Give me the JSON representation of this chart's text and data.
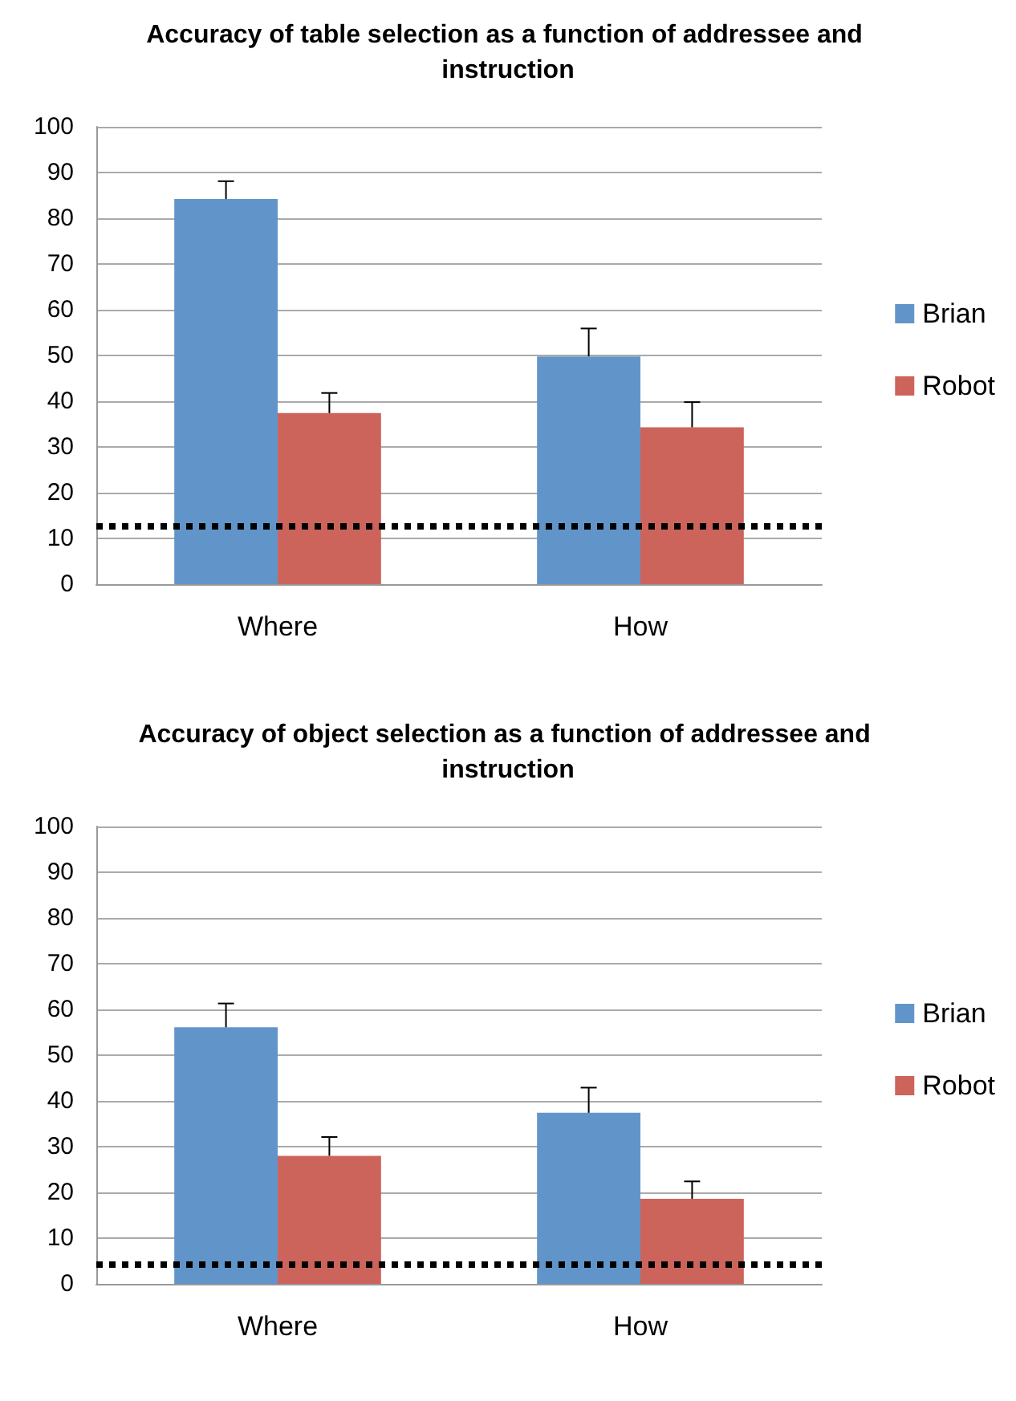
{
  "chart_data": [
    {
      "type": "bar",
      "title": "Accuracy of table selection as a function of addressee and instruction",
      "categories": [
        "Where",
        "How"
      ],
      "series": [
        {
          "name": "Brian",
          "color": "#6195c9",
          "values": [
            84.2,
            49.8
          ],
          "errors": [
            [
              84.2,
              88.1
            ],
            [
              49.8,
              55.9
            ]
          ]
        },
        {
          "name": "Robot",
          "color": "#cc645c",
          "values": [
            37.4,
            34.3
          ],
          "errors": [
            [
              37.4,
              41.8
            ],
            [
              34.3,
              39.8
            ]
          ]
        }
      ],
      "ylim": [
        0,
        100
      ],
      "yticks": [
        0,
        10,
        20,
        30,
        40,
        50,
        60,
        70,
        80,
        90,
        100
      ],
      "grid": "y",
      "legend": "right",
      "ref_lines": [
        {
          "axis": "y",
          "value": 12.7,
          "color": "#000000",
          "line_style": "dotted"
        }
      ]
    },
    {
      "type": "bar",
      "title": "Accuracy of object selection as a function of addressee and instruction",
      "categories": [
        "Where",
        "How"
      ],
      "series": [
        {
          "name": "Brian",
          "color": "#6195c9",
          "values": [
            56.1,
            37.4
          ],
          "errors": [
            [
              56.1,
              61.3
            ],
            [
              37.4,
              42.9
            ]
          ]
        },
        {
          "name": "Robot",
          "color": "#cc645c",
          "values": [
            28.0,
            18.6
          ],
          "errors": [
            [
              28.0,
              32.1
            ],
            [
              18.6,
              22.4
            ]
          ]
        }
      ],
      "ylim": [
        0,
        100
      ],
      "yticks": [
        0,
        10,
        20,
        30,
        40,
        50,
        60,
        70,
        80,
        90,
        100
      ],
      "grid": "y",
      "legend": "right",
      "ref_lines": [
        {
          "axis": "y",
          "value": 4.4,
          "color": "#000000",
          "line_style": "dotted"
        }
      ]
    }
  ]
}
